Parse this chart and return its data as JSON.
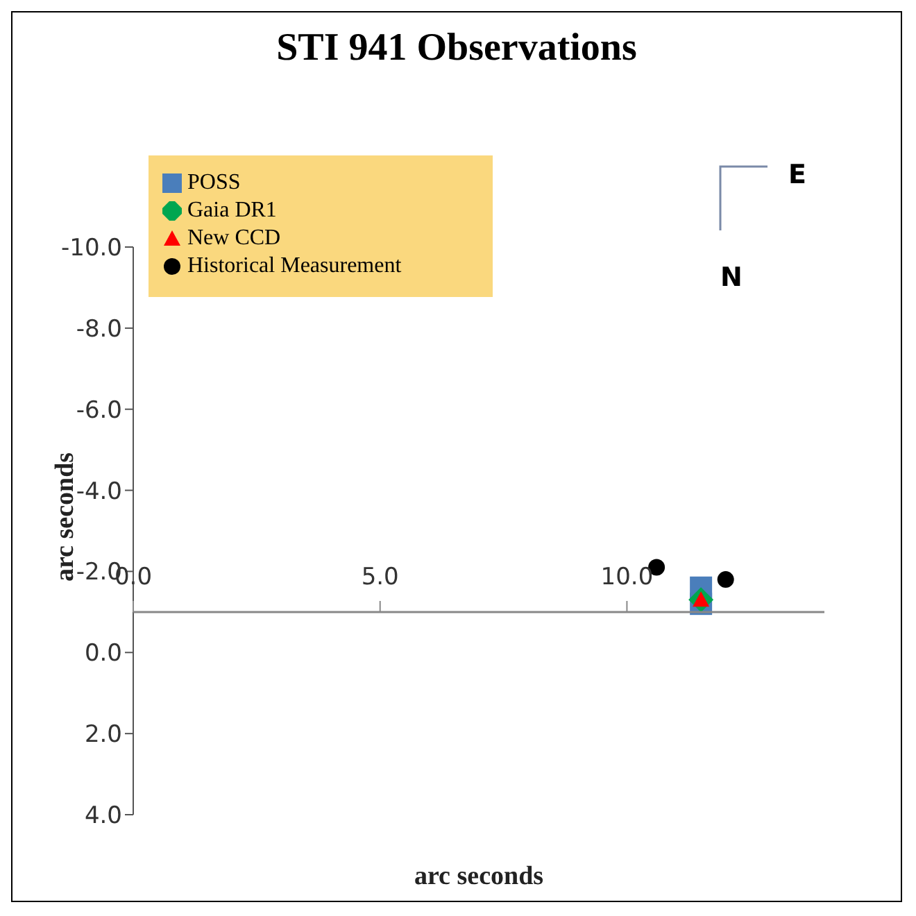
{
  "chart_data": {
    "type": "scatter",
    "title": "STI 941 Observations",
    "xlabel": "arc seconds",
    "ylabel": "arc seconds",
    "annotations": [
      "E",
      "N"
    ],
    "xlim": [
      0,
      14
    ],
    "xticks": [
      {
        "value": 0,
        "label": "0.0"
      },
      {
        "value": 5,
        "label": "5.0"
      },
      {
        "value": 10,
        "label": "10.0"
      }
    ],
    "ylim": [
      4,
      -10
    ],
    "yticks": [
      {
        "value": -10,
        "label": "-10.0"
      },
      {
        "value": -8,
        "label": "-8.0"
      },
      {
        "value": -6,
        "label": "-6.0"
      },
      {
        "value": -4,
        "label": "-4.0"
      },
      {
        "value": -2,
        "label": "-2.0"
      },
      {
        "value": 0,
        "label": "0.0"
      },
      {
        "value": 2,
        "label": "2.0"
      },
      {
        "value": 4,
        "label": "4.0"
      }
    ],
    "grid": false,
    "legend": "top left",
    "series": [
      {
        "name": "POSS",
        "color": "#4a7ebb",
        "marker": "square",
        "x": [
          11.5,
          11.5
        ],
        "values": [
          -1.2,
          -1.6
        ]
      },
      {
        "name": "Gaia  DR1",
        "color": "#00a650",
        "marker": "diamond",
        "x": [
          11.5
        ],
        "values": [
          -1.3
        ]
      },
      {
        "name": "New CCD",
        "color": "#ff0000",
        "marker": "triangle",
        "x": [
          11.5
        ],
        "values": [
          -1.3
        ]
      },
      {
        "name": "Historical Measurement",
        "color": "#000000",
        "marker": "circle",
        "x": [
          10.6,
          12.0
        ],
        "values": [
          -2.1,
          -1.8
        ]
      }
    ]
  }
}
